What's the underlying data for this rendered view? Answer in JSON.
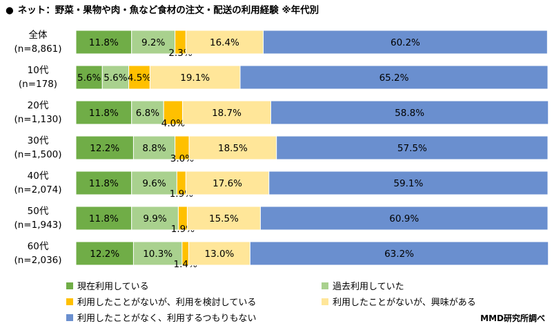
{
  "title": "ネット：野菜・果物や肉・魚など食材の注文・配送の利用経験 ※年代別",
  "credit": "MMD研究所調べ",
  "chart_data": {
    "type": "bar",
    "orientation": "horizontal",
    "stacked": true,
    "percent_stacked": true,
    "categories": [
      "全体\n(n=8,861)",
      "10代\n(n=178)",
      "20代\n(n=1,130)",
      "30代\n(n=1,500)",
      "40代\n(n=2,074)",
      "50代\n(n=1,943)",
      "60代\n(n=2,036)"
    ],
    "series": [
      {
        "name": "現在利用している",
        "color": "#70ad47",
        "values": [
          11.8,
          5.6,
          11.8,
          12.2,
          11.8,
          11.8,
          12.2
        ]
      },
      {
        "name": "過去利用していた",
        "color": "#a9d18e",
        "values": [
          9.2,
          5.6,
          6.8,
          8.8,
          9.6,
          9.9,
          10.3
        ]
      },
      {
        "name": "利用したことがないが、利用を検討している",
        "color": "#ffc000",
        "values": [
          2.3,
          4.5,
          4.0,
          3.0,
          1.9,
          1.9,
          1.4
        ]
      },
      {
        "name": "利用したことがないが、興味がある",
        "color": "#ffe699",
        "values": [
          16.4,
          19.1,
          18.7,
          18.5,
          17.6,
          15.5,
          13.0
        ]
      },
      {
        "name": "利用したことがなく、利用するつもりもない",
        "color": "#6a8fcf",
        "values": [
          60.2,
          65.2,
          58.8,
          57.5,
          59.1,
          60.9,
          63.2
        ]
      }
    ],
    "xlim": [
      0,
      100
    ],
    "grid": false,
    "legend_position": "bottom"
  }
}
